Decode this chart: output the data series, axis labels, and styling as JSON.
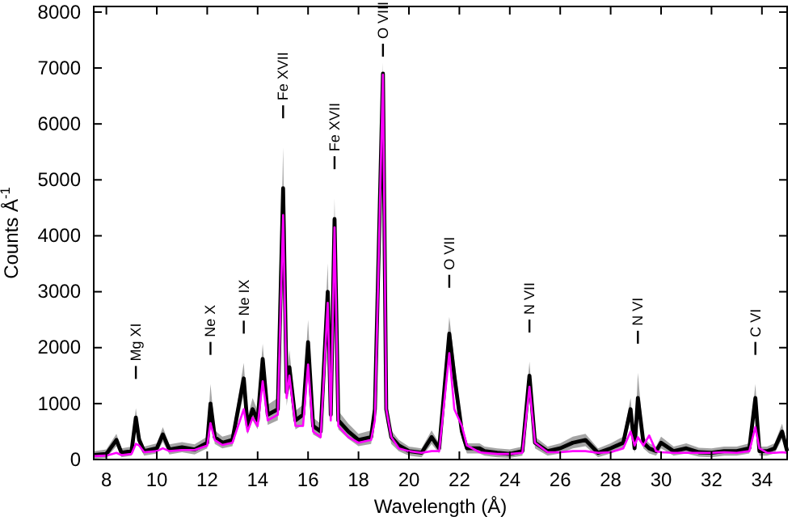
{
  "chart_data": {
    "type": "line",
    "xlabel": "Wavelength (Å)",
    "ylabel": "Counts Å$^{-1}$",
    "xlim": [
      7.5,
      35
    ],
    "ylim": [
      0,
      8100
    ],
    "xticks": [
      8,
      10,
      12,
      14,
      16,
      18,
      20,
      22,
      24,
      26,
      28,
      30,
      32,
      34
    ],
    "yticks": [
      0,
      1000,
      2000,
      3000,
      4000,
      5000,
      6000,
      7000,
      8000
    ],
    "grid": false,
    "line_style": "solid",
    "marker": "none",
    "x": [
      7.5,
      8.0,
      8.4,
      8.6,
      9.0,
      9.17,
      9.3,
      9.5,
      10.0,
      10.24,
      10.5,
      11.0,
      11.5,
      12.0,
      12.13,
      12.3,
      12.6,
      13.0,
      13.45,
      13.6,
      13.8,
      14.0,
      14.2,
      14.4,
      14.8,
      15.01,
      15.15,
      15.26,
      15.5,
      15.8,
      16.0,
      16.2,
      16.5,
      16.78,
      16.9,
      17.05,
      17.2,
      17.6,
      18.0,
      18.5,
      18.65,
      18.97,
      19.1,
      19.3,
      19.6,
      20.0,
      20.5,
      20.9,
      21.2,
      21.6,
      21.8,
      22.1,
      22.3,
      22.8,
      23.0,
      23.5,
      24.0,
      24.5,
      24.78,
      25.0,
      25.5,
      26.0,
      26.5,
      27.0,
      27.5,
      28.0,
      28.5,
      28.79,
      28.95,
      29.08,
      29.3,
      29.53,
      29.8,
      30.0,
      30.5,
      31.0,
      31.5,
      32.0,
      32.5,
      33.0,
      33.5,
      33.74,
      33.9,
      34.2,
      34.5,
      34.8,
      35.0
    ],
    "series": [
      {
        "color": "#000000",
        "values": [
          80,
          100,
          350,
          120,
          150,
          750,
          350,
          150,
          200,
          450,
          180,
          220,
          180,
          300,
          1000,
          400,
          300,
          350,
          1450,
          600,
          900,
          700,
          1800,
          800,
          900,
          4850,
          1200,
          1650,
          700,
          800,
          2100,
          600,
          500,
          3000,
          800,
          4300,
          700,
          500,
          350,
          400,
          900,
          6900,
          900,
          400,
          250,
          150,
          120,
          400,
          200,
          2250,
          1500,
          500,
          200,
          200,
          150,
          120,
          100,
          150,
          1500,
          300,
          150,
          200,
          300,
          350,
          120,
          200,
          300,
          900,
          200,
          1100,
          300,
          200,
          150,
          300,
          150,
          200,
          130,
          120,
          150,
          150,
          200,
          1100,
          150,
          150,
          200,
          500,
          150
        ],
        "lower": [
          10,
          30,
          240,
          40,
          70,
          580,
          240,
          70,
          110,
          320,
          90,
          130,
          90,
          200,
          790,
          280,
          200,
          240,
          1170,
          450,
          700,
          540,
          1470,
          620,
          700,
          4060,
          960,
          1340,
          540,
          620,
          1730,
          450,
          370,
          2490,
          620,
          3600,
          540,
          370,
          240,
          280,
          700,
          6200,
          700,
          280,
          150,
          70,
          40,
          280,
          110,
          1850,
          1220,
          370,
          110,
          110,
          70,
          40,
          30,
          70,
          1220,
          200,
          70,
          110,
          200,
          240,
          40,
          110,
          200,
          700,
          110,
          880,
          200,
          110,
          70,
          200,
          70,
          110,
          50,
          40,
          70,
          70,
          110,
          880,
          70,
          70,
          110,
          370,
          70
        ],
        "upper": [
          150,
          180,
          460,
          200,
          230,
          920,
          460,
          230,
          290,
          580,
          270,
          310,
          270,
          410,
          1350,
          520,
          410,
          460,
          1730,
          750,
          1100,
          870,
          2070,
          980,
          1100,
          5580,
          1440,
          1960,
          870,
          980,
          2500,
          750,
          640,
          3510,
          980,
          4670,
          870,
          640,
          460,
          520,
          1100,
          7100,
          1100,
          520,
          350,
          230,
          200,
          520,
          290,
          2550,
          1790,
          640,
          290,
          290,
          230,
          200,
          180,
          230,
          1750,
          410,
          230,
          290,
          410,
          460,
          200,
          290,
          410,
          1100,
          290,
          1550,
          410,
          290,
          230,
          410,
          230,
          290,
          210,
          200,
          230,
          230,
          290,
          1350,
          230,
          230,
          290,
          640,
          230
        ]
      },
      {
        "color": "#ff00ff",
        "values": [
          60,
          70,
          120,
          80,
          100,
          280,
          250,
          130,
          150,
          200,
          150,
          170,
          170,
          250,
          650,
          350,
          260,
          300,
          900,
          500,
          750,
          600,
          1400,
          700,
          800,
          4370,
          1100,
          1500,
          600,
          600,
          1700,
          500,
          400,
          2800,
          700,
          4150,
          600,
          400,
          300,
          350,
          700,
          6880,
          900,
          400,
          200,
          150,
          120,
          150,
          150,
          1900,
          900,
          600,
          250,
          130,
          120,
          100,
          100,
          120,
          1300,
          300,
          130,
          130,
          150,
          150,
          120,
          130,
          200,
          500,
          250,
          400,
          250,
          430,
          150,
          130,
          120,
          120,
          120,
          120,
          130,
          120,
          150,
          580,
          200,
          120,
          120,
          130,
          120
        ]
      }
    ],
    "annotations": [
      {
        "text": "Mg XI",
        "x": 9.17
      },
      {
        "text": "Ne X",
        "x": 12.13
      },
      {
        "text": "Ne IX",
        "x": 13.45
      },
      {
        "text": "Fe XVII",
        "x": 15.01
      },
      {
        "text": "Fe XVII",
        "x": 17.05
      },
      {
        "text": "O VIII",
        "x": 18.97
      },
      {
        "text": "O VII",
        "x": 21.6
      },
      {
        "text": "N VII",
        "x": 24.78
      },
      {
        "text": "N VI",
        "x": 29.08
      },
      {
        "text": "C VI",
        "x": 33.74
      }
    ]
  }
}
